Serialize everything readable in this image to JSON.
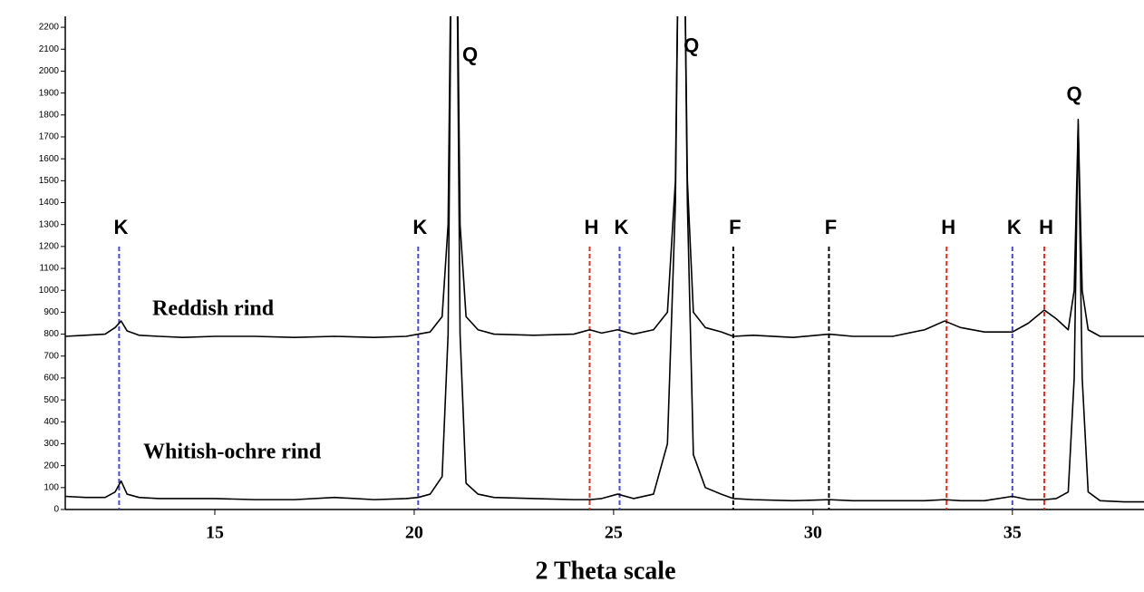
{
  "chart_data": {
    "type": "line",
    "xlabel": "2 Theta scale",
    "xlim": [
      11.25,
      38.3
    ],
    "xticks": [
      15,
      20,
      25,
      30,
      35
    ],
    "ylim": [
      0,
      2250
    ],
    "yticks": [
      0,
      100,
      200,
      300,
      400,
      500,
      600,
      700,
      800,
      900,
      1000,
      1100,
      1200,
      1300,
      1400,
      1500,
      1600,
      1700,
      1800,
      1900,
      2000,
      2100,
      2200
    ],
    "x": [
      11.25,
      11.75,
      12.25,
      12.5,
      12.65,
      12.8,
      13.1,
      13.6,
      14.2,
      15,
      16,
      17,
      18,
      19,
      19.8,
      20.1,
      20.4,
      20.7,
      20.85,
      20.95,
      21.05,
      21.15,
      21.3,
      21.6,
      22,
      23,
      24,
      24.4,
      24.7,
      25.1,
      25.5,
      26,
      26.35,
      26.55,
      26.65,
      26.75,
      26.85,
      27,
      27.3,
      27.7,
      28,
      28.5,
      29.5,
      30.4,
      31,
      32,
      32.8,
      33.3,
      33.7,
      34.3,
      35,
      35.4,
      35.8,
      36.1,
      36.4,
      36.55,
      36.65,
      36.75,
      36.9,
      37.2,
      37.8,
      38.3
    ],
    "series": [
      {
        "name": "Reddish rind",
        "color": "#000000",
        "values": [
          790,
          795,
          800,
          830,
          860,
          815,
          795,
          790,
          785,
          790,
          790,
          785,
          790,
          785,
          790,
          800,
          810,
          880,
          1300,
          3000,
          3000,
          1300,
          880,
          820,
          800,
          795,
          800,
          820,
          805,
          820,
          800,
          820,
          900,
          1500,
          3000,
          3000,
          1500,
          900,
          830,
          810,
          790,
          795,
          785,
          800,
          790,
          790,
          820,
          860,
          830,
          810,
          810,
          850,
          910,
          870,
          820,
          1000,
          1760,
          1000,
          820,
          790,
          790,
          790
        ]
      },
      {
        "name": "Whitish-ochre rind",
        "color": "#000000",
        "values": [
          60,
          55,
          55,
          80,
          130,
          70,
          55,
          50,
          50,
          50,
          45,
          45,
          55,
          45,
          50,
          55,
          70,
          150,
          800,
          3000,
          3000,
          800,
          120,
          70,
          55,
          50,
          45,
          45,
          50,
          70,
          50,
          70,
          300,
          1400,
          3000,
          3000,
          1400,
          250,
          100,
          70,
          50,
          45,
          40,
          45,
          40,
          40,
          40,
          45,
          40,
          40,
          60,
          45,
          45,
          50,
          80,
          600,
          1780,
          600,
          80,
          40,
          35,
          35
        ]
      }
    ],
    "reference_lines": [
      {
        "label": "K",
        "x": 12.6,
        "color": "#4a4ac8"
      },
      {
        "label": "K",
        "x": 20.1,
        "color": "#4a4ac8"
      },
      {
        "label": "H",
        "x": 24.4,
        "color": "#e03020"
      },
      {
        "label": "K",
        "x": 25.15,
        "color": "#4a4ac8"
      },
      {
        "label": "F",
        "x": 28.0,
        "color": "#000000"
      },
      {
        "label": "F",
        "x": 30.4,
        "color": "#000000"
      },
      {
        "label": "H",
        "x": 33.35,
        "color": "#e03020"
      },
      {
        "label": "K",
        "x": 35.0,
        "color": "#4a4ac8"
      },
      {
        "label": "H",
        "x": 35.8,
        "color": "#e03020"
      }
    ],
    "annotations": [
      {
        "label": "Q",
        "x": 21.4,
        "y": 2070
      },
      {
        "label": "Q",
        "x": 26.95,
        "y": 2110
      },
      {
        "label": "Q",
        "x": 36.55,
        "y": 1890
      }
    ]
  }
}
